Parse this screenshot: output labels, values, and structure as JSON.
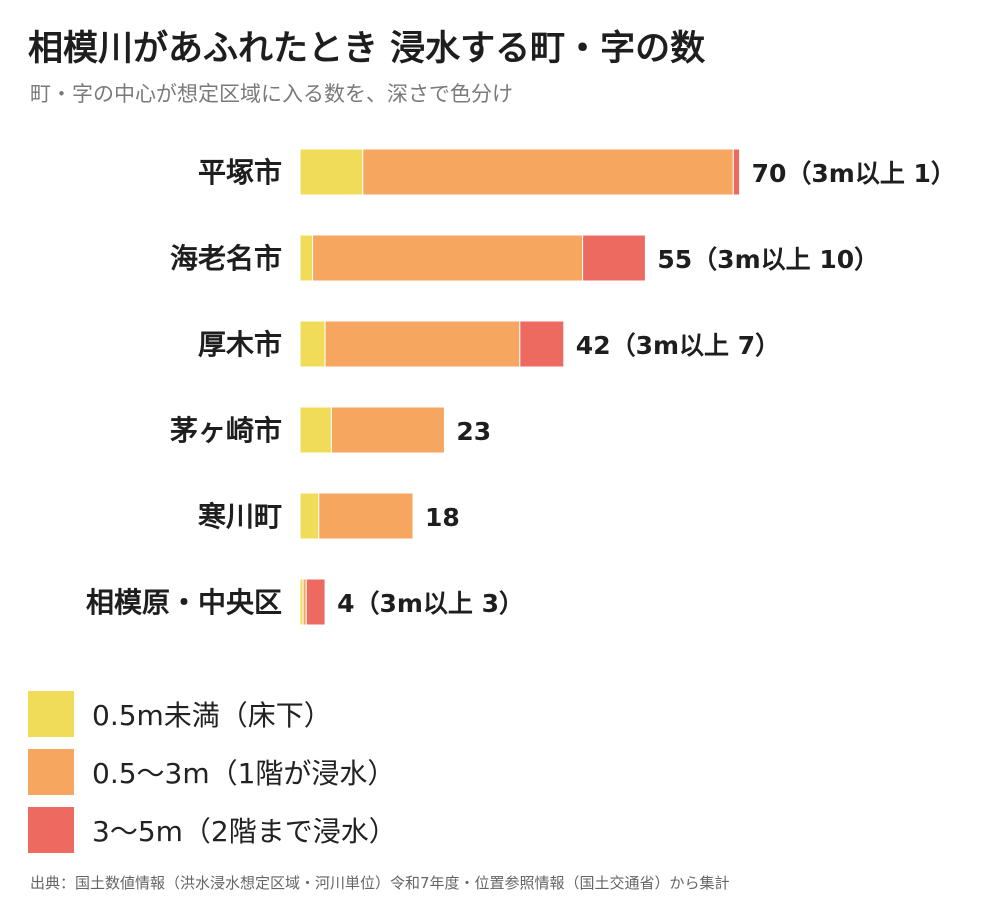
{
  "title": "相模川があふれたとき 浸水する町・字の数",
  "subtitle": "町・字の中心が想定区域に入る数を、深さで色分け",
  "source": "出典：国土数値情報（洪水浸水想定区域・河川単位）令和7年度・位置参照情報（国土交通省）から集計",
  "colors": {
    "under_0_5m": "#f1dc5a",
    "from_0_5_to_3m": "#f6a65f",
    "from_3_to_5m": "#ec6a60"
  },
  "legend": [
    {
      "label": "0.5m未満（床下）",
      "color": "#f1dc5a"
    },
    {
      "label": "0.5〜3m（1階が浸水）",
      "color": "#f6a65f"
    },
    {
      "label": "3〜5m（2階まで浸水）",
      "color": "#ec6a60"
    }
  ],
  "chart_data": {
    "type": "bar",
    "orientation": "horizontal",
    "stacked": true,
    "categories": [
      "平塚市",
      "海老名市",
      "厚木市",
      "茅ヶ崎市",
      "寒川町",
      "相模原・中央区"
    ],
    "series": [
      {
        "name": "0.5m未満（床下）",
        "color": "#f1dc5a",
        "values": [
          10,
          2,
          4,
          5,
          3,
          0.5
        ]
      },
      {
        "name": "0.5〜3m（1階が浸水）",
        "color": "#f6a65f",
        "values": [
          59,
          43,
          31,
          18,
          15,
          0.5
        ]
      },
      {
        "name": "3〜5m（2階まで浸水）",
        "color": "#ec6a60",
        "values": [
          1,
          10,
          7,
          0,
          0,
          3
        ]
      }
    ],
    "totals": [
      70,
      55,
      42,
      23,
      18,
      4
    ],
    "bar_labels": [
      "70（3m以上 1）",
      "55（3m以上 10）",
      "42（3m以上 7）",
      "23",
      "18",
      "4（3m以上 3）"
    ],
    "grid": false,
    "legend_position": "bottom-left"
  }
}
